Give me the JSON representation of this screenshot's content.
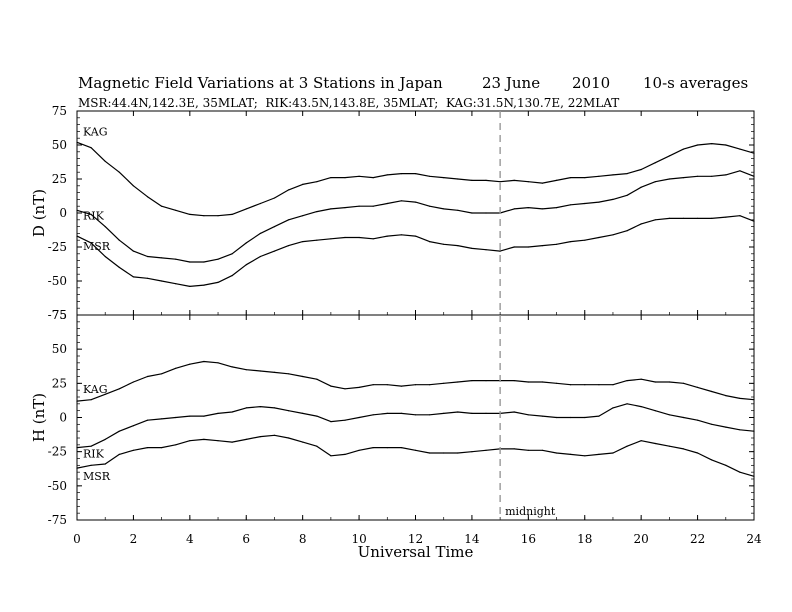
{
  "chart_data": {
    "type": "line",
    "title": {
      "main": "Magnetic Field Variations at 3 Stations in Japan",
      "date": "23 June",
      "year": "2010",
      "avg": "10-s averages"
    },
    "subtitle": "MSR:44.4N,142.3E, 35MLAT;  RIK:43.5N,143.8E, 35MLAT;  KAG:31.5N,130.7E, 22MLAT",
    "xlabel": "Universal Time",
    "xlim": [
      0,
      24
    ],
    "xticks": [
      "0",
      "2",
      "4",
      "6",
      "8",
      "10",
      "12",
      "14",
      "16",
      "18",
      "20",
      "22",
      "24"
    ],
    "midnight": {
      "x": 15,
      "label": "midnight"
    },
    "panels": [
      {
        "ylabel": "D (nT)",
        "ylim": [
          -75,
          75
        ],
        "yticks": [
          "75",
          "50",
          "25",
          "0",
          "-25",
          "-50",
          "-75"
        ],
        "series": [
          {
            "name": "KAG",
            "x": [
              0,
              0.5,
              1,
              1.5,
              2,
              2.5,
              3,
              3.5,
              4,
              4.5,
              5,
              5.5,
              6,
              6.5,
              7,
              7.5,
              8,
              8.5,
              9,
              9.5,
              10,
              10.5,
              11,
              11.5,
              12,
              12.5,
              13,
              13.5,
              14,
              14.5,
              15,
              15.5,
              16,
              16.5,
              17,
              17.5,
              18,
              18.5,
              19,
              19.5,
              20,
              20.5,
              21,
              21.5,
              22,
              22.5,
              23,
              23.5,
              24
            ],
            "values": [
              52,
              48,
              38,
              30,
              20,
              12,
              5,
              2,
              -1,
              -2,
              -2,
              -1,
              3,
              7,
              11,
              17,
              21,
              23,
              26,
              26,
              27,
              26,
              28,
              29,
              29,
              27,
              26,
              25,
              24,
              24,
              23,
              24,
              23,
              22,
              24,
              26,
              26,
              27,
              28,
              29,
              32,
              37,
              42,
              47,
              50,
              51,
              50,
              47,
              44
            ]
          },
          {
            "name": "RIK",
            "x": [
              0,
              0.5,
              1,
              1.5,
              2,
              2.5,
              3,
              3.5,
              4,
              4.5,
              5,
              5.5,
              6,
              6.5,
              7,
              7.5,
              8,
              8.5,
              9,
              9.5,
              10,
              10.5,
              11,
              11.5,
              12,
              12.5,
              13,
              13.5,
              14,
              14.5,
              15,
              15.5,
              16,
              16.5,
              17,
              17.5,
              18,
              18.5,
              19,
              19.5,
              20,
              20.5,
              21,
              21.5,
              22,
              22.5,
              23,
              23.5,
              24
            ],
            "values": [
              2,
              -1,
              -10,
              -20,
              -28,
              -32,
              -33,
              -34,
              -36,
              -36,
              -34,
              -30,
              -22,
              -15,
              -10,
              -5,
              -2,
              1,
              3,
              4,
              5,
              5,
              7,
              9,
              8,
              5,
              3,
              2,
              0,
              0,
              0,
              3,
              4,
              3,
              4,
              6,
              7,
              8,
              10,
              13,
              19,
              23,
              25,
              26,
              27,
              27,
              28,
              31,
              27
            ]
          },
          {
            "name": "MSR",
            "x": [
              0,
              0.5,
              1,
              1.5,
              2,
              2.5,
              3,
              3.5,
              4,
              4.5,
              5,
              5.5,
              6,
              6.5,
              7,
              7.5,
              8,
              8.5,
              9,
              9.5,
              10,
              10.5,
              11,
              11.5,
              12,
              12.5,
              13,
              13.5,
              14,
              14.5,
              15,
              15.5,
              16,
              16.5,
              17,
              17.5,
              18,
              18.5,
              19,
              19.5,
              20,
              20.5,
              21,
              21.5,
              22,
              22.5,
              23,
              23.5,
              24
            ],
            "values": [
              -17,
              -22,
              -32,
              -40,
              -47,
              -48,
              -50,
              -52,
              -54,
              -53,
              -51,
              -46,
              -38,
              -32,
              -28,
              -24,
              -21,
              -20,
              -19,
              -18,
              -18,
              -19,
              -17,
              -16,
              -17,
              -21,
              -23,
              -24,
              -26,
              -27,
              -28,
              -25,
              -25,
              -24,
              -23,
              -21,
              -20,
              -18,
              -16,
              -13,
              -8,
              -5,
              -4,
              -4,
              -4,
              -4,
              -3,
              -2,
              -6
            ]
          }
        ]
      },
      {
        "ylabel": "H (nT)",
        "ylim": [
          -75,
          75
        ],
        "yticks": [
          "75",
          "50",
          "25",
          "0",
          "-25",
          "-50",
          "-75"
        ],
        "series": [
          {
            "name": "KAG",
            "x": [
              0,
              0.5,
              1,
              1.5,
              2,
              2.5,
              3,
              3.5,
              4,
              4.5,
              5,
              5.5,
              6,
              6.5,
              7,
              7.5,
              8,
              8.5,
              9,
              9.5,
              10,
              10.5,
              11,
              11.5,
              12,
              12.5,
              13,
              13.5,
              14,
              14.5,
              15,
              15.5,
              16,
              16.5,
              17,
              17.5,
              18,
              18.5,
              19,
              19.5,
              20,
              20.5,
              21,
              21.5,
              22,
              22.5,
              23,
              23.5,
              24
            ],
            "values": [
              12,
              13,
              17,
              21,
              26,
              30,
              32,
              36,
              39,
              41,
              40,
              37,
              35,
              34,
              33,
              32,
              30,
              28,
              23,
              21,
              22,
              24,
              24,
              23,
              24,
              24,
              25,
              26,
              27,
              27,
              27,
              27,
              26,
              26,
              25,
              24,
              24,
              24,
              24,
              27,
              28,
              26,
              26,
              25,
              22,
              19,
              16,
              14,
              13
            ]
          },
          {
            "name": "RIK",
            "x": [
              0,
              0.5,
              1,
              1.5,
              2,
              2.5,
              3,
              3.5,
              4,
              4.5,
              5,
              5.5,
              6,
              6.5,
              7,
              7.5,
              8,
              8.5,
              9,
              9.5,
              10,
              10.5,
              11,
              11.5,
              12,
              12.5,
              13,
              13.5,
              14,
              14.5,
              15,
              15.5,
              16,
              16.5,
              17,
              17.5,
              18,
              18.5,
              19,
              19.5,
              20,
              20.5,
              21,
              21.5,
              22,
              22.5,
              23,
              23.5,
              24
            ],
            "values": [
              -22,
              -21,
              -16,
              -10,
              -6,
              -2,
              -1,
              0,
              1,
              1,
              3,
              4,
              7,
              8,
              7,
              5,
              3,
              1,
              -3,
              -2,
              0,
              2,
              3,
              3,
              2,
              2,
              3,
              4,
              3,
              3,
              3,
              4,
              2,
              1,
              0,
              0,
              0,
              1,
              7,
              10,
              8,
              5,
              2,
              0,
              -2,
              -5,
              -7,
              -9,
              -10
            ]
          },
          {
            "name": "MSR",
            "x": [
              0,
              0.5,
              1,
              1.5,
              2,
              2.5,
              3,
              3.5,
              4,
              4.5,
              5,
              5.5,
              6,
              6.5,
              7,
              7.5,
              8,
              8.5,
              9,
              9.5,
              10,
              10.5,
              11,
              11.5,
              12,
              12.5,
              13,
              13.5,
              14,
              14.5,
              15,
              15.5,
              16,
              16.5,
              17,
              17.5,
              18,
              18.5,
              19,
              19.5,
              20,
              20.5,
              21,
              21.5,
              22,
              22.5,
              23,
              23.5,
              24
            ],
            "values": [
              -37,
              -35,
              -34,
              -27,
              -24,
              -22,
              -22,
              -20,
              -17,
              -16,
              -17,
              -18,
              -16,
              -14,
              -13,
              -15,
              -18,
              -21,
              -28,
              -27,
              -24,
              -22,
              -22,
              -22,
              -24,
              -26,
              -26,
              -26,
              -25,
              -24,
              -23,
              -23,
              -24,
              -24,
              -26,
              -27,
              -28,
              -27,
              -26,
              -21,
              -17,
              -19,
              -21,
              -23,
              -26,
              -31,
              -35,
              -40,
              -43
            ]
          }
        ]
      }
    ]
  }
}
